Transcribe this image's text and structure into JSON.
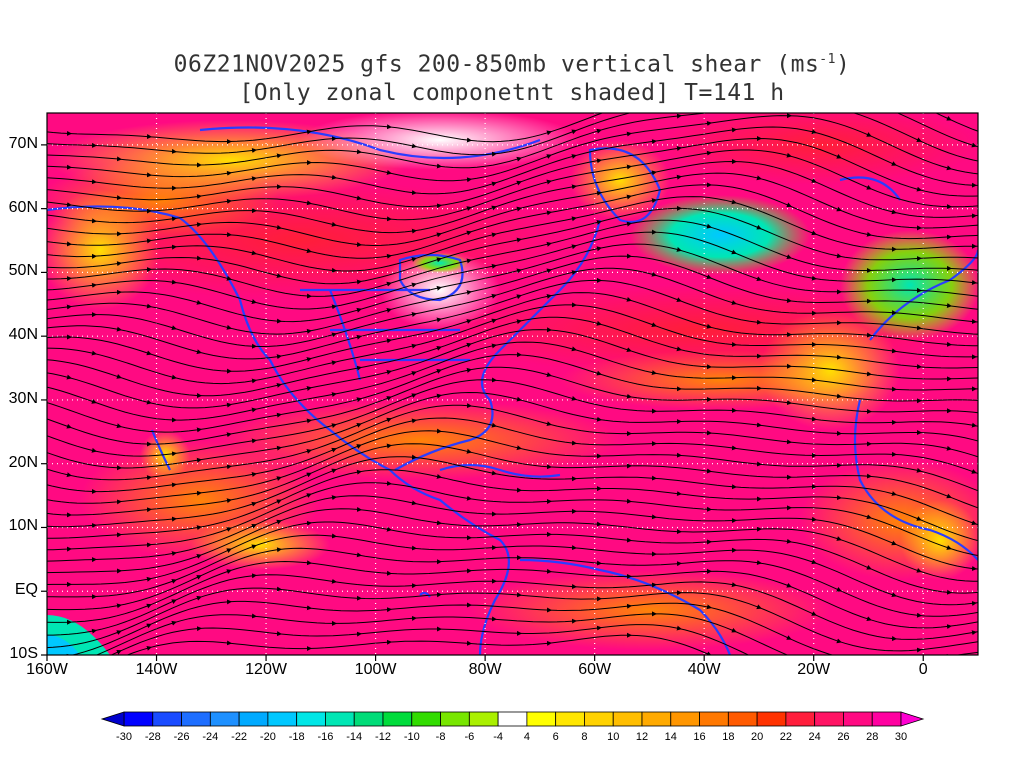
{
  "title": {
    "line1_pre": "06Z21NOV2025 gfs 200-850mb vertical shear (ms",
    "line1_sup": "-1",
    "line1_post": ")",
    "line2": "[Only zonal componetnt shaded] T=141 h"
  },
  "map": {
    "lon_range": [
      -160,
      10
    ],
    "lat_range": [
      -10,
      75
    ],
    "lat_labels": [
      "70N",
      "60N",
      "50N",
      "40N",
      "30N",
      "20N",
      "10N",
      "EQ",
      "10S"
    ],
    "lat_values": [
      70,
      60,
      50,
      40,
      30,
      20,
      10,
      0,
      -10
    ],
    "lon_labels": [
      "160W",
      "140W",
      "120W",
      "100W",
      "80W",
      "60W",
      "40W",
      "20W",
      "0"
    ],
    "lon_values": [
      -160,
      -140,
      -120,
      -100,
      -80,
      -60,
      -40,
      -20,
      0
    ],
    "coastline_color": "#2a3cff",
    "streamline_color": "#000000",
    "grid_style": "dotted"
  },
  "colorbar": {
    "labels": [
      "-30",
      "-28",
      "-26",
      "-24",
      "-22",
      "-20",
      "-18",
      "-16",
      "-14",
      "-12",
      "-10",
      "-8",
      "-6",
      "-4",
      "4",
      "6",
      "8",
      "10",
      "12",
      "14",
      "16",
      "18",
      "20",
      "22",
      "24",
      "26",
      "28",
      "30"
    ],
    "colors": [
      "#0000ff",
      "#1a4bff",
      "#1e6eff",
      "#1e90ff",
      "#00aaff",
      "#00c8ff",
      "#00e6e6",
      "#00e6b4",
      "#00dc78",
      "#00dc3c",
      "#32dc00",
      "#78e600",
      "#aaf000",
      "#ffffff",
      "#ffff00",
      "#ffe600",
      "#ffd200",
      "#ffbe00",
      "#ffaa00",
      "#ff9600",
      "#ff7800",
      "#ff5a00",
      "#ff3200",
      "#ff1e3c",
      "#ff1464",
      "#ff0a82",
      "#ff00a0"
    ]
  }
}
